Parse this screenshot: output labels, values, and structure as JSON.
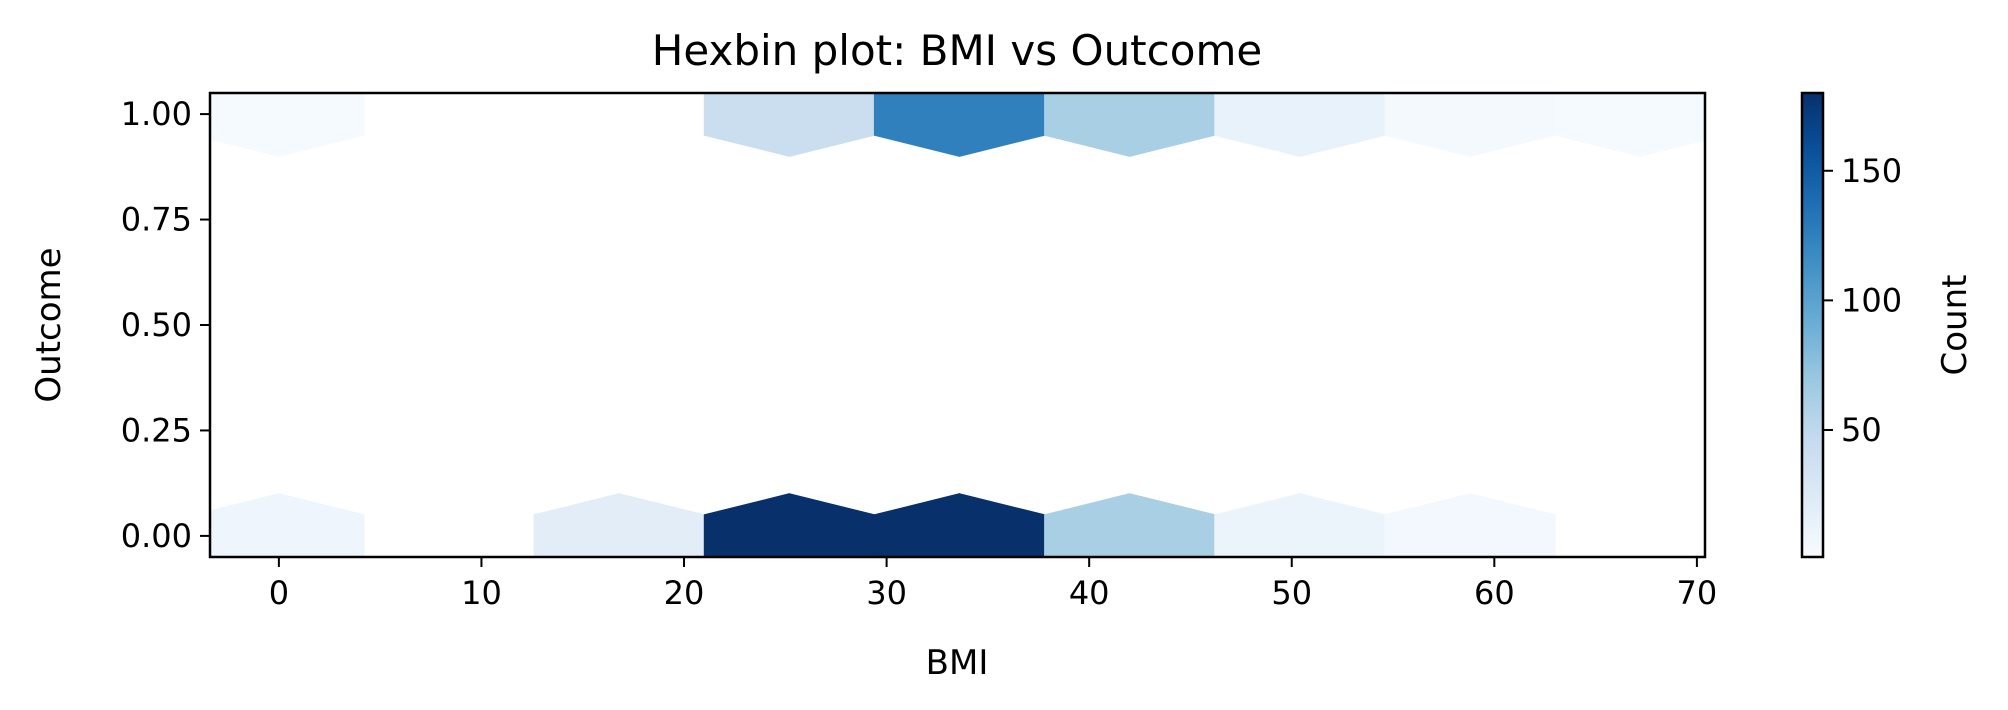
{
  "chart_data": {
    "type": "heatmap",
    "title": "Hexbin plot: BMI vs Outcome",
    "xlabel": "BMI",
    "ylabel": "Outcome",
    "xlim": [
      -3.4,
      70.4
    ],
    "ylim": [
      -0.05,
      1.05
    ],
    "xticks": [
      0,
      10,
      20,
      30,
      40,
      50,
      60,
      70
    ],
    "xtick_labels": [
      "0",
      "10",
      "20",
      "30",
      "40",
      "50",
      "60",
      "70"
    ],
    "yticks": [
      0.0,
      0.25,
      0.5,
      0.75,
      1.0
    ],
    "ytick_labels": [
      "0.00",
      "0.25",
      "0.50",
      "0.75",
      "1.00"
    ],
    "colorbar": {
      "label": "Count",
      "colormap": "Blues",
      "range": [
        1,
        180
      ],
      "ticks": [
        50,
        100,
        150
      ],
      "tick_labels": [
        "50",
        "100",
        "150"
      ]
    },
    "bins": [
      {
        "bmi": 0.0,
        "outcome": 0,
        "count": 9
      },
      {
        "bmi": 16.8,
        "outcome": 0,
        "count": 20
      },
      {
        "bmi": 25.2,
        "outcome": 0,
        "count": 180
      },
      {
        "bmi": 33.6,
        "outcome": 0,
        "count": 180
      },
      {
        "bmi": 42.0,
        "outcome": 0,
        "count": 62
      },
      {
        "bmi": 50.4,
        "outcome": 0,
        "count": 11
      },
      {
        "bmi": 58.8,
        "outcome": 0,
        "count": 5
      },
      {
        "bmi": 0.0,
        "outcome": 1,
        "count": 3
      },
      {
        "bmi": 25.2,
        "outcome": 1,
        "count": 42
      },
      {
        "bmi": 33.6,
        "outcome": 1,
        "count": 125
      },
      {
        "bmi": 42.0,
        "outcome": 1,
        "count": 62
      },
      {
        "bmi": 50.4,
        "outcome": 1,
        "count": 14
      },
      {
        "bmi": 58.8,
        "outcome": 1,
        "count": 4
      },
      {
        "bmi": 67.2,
        "outcome": 1,
        "count": 3
      }
    ],
    "grid": false
  }
}
